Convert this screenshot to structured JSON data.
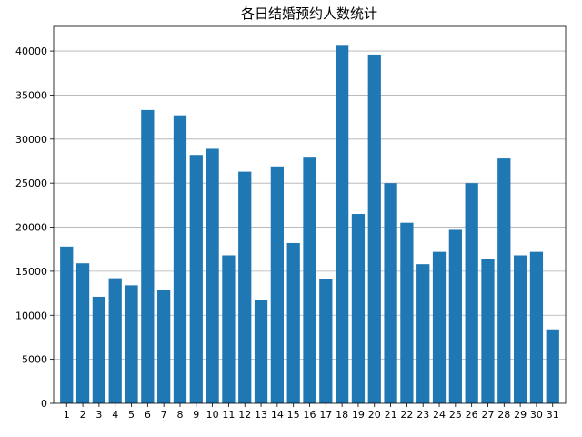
{
  "chart_data": {
    "type": "bar",
    "title": "各日结婚预约人数统计",
    "xlabel": "",
    "ylabel": "",
    "categories": [
      "1",
      "2",
      "3",
      "4",
      "5",
      "6",
      "7",
      "8",
      "9",
      "10",
      "11",
      "12",
      "13",
      "14",
      "15",
      "16",
      "17",
      "18",
      "19",
      "20",
      "21",
      "22",
      "23",
      "24",
      "25",
      "26",
      "27",
      "28",
      "29",
      "30",
      "31"
    ],
    "values": [
      17800,
      15900,
      12100,
      14200,
      13400,
      33300,
      12900,
      32700,
      28200,
      28900,
      16800,
      26300,
      11700,
      26900,
      18200,
      28000,
      14100,
      40700,
      21500,
      39600,
      25000,
      20500,
      15800,
      17200,
      19700,
      25000,
      16400,
      27800,
      16800,
      17200,
      8400
    ],
    "ylim": [
      0,
      42800
    ],
    "yticks": [
      0,
      5000,
      10000,
      15000,
      20000,
      25000,
      30000,
      35000,
      40000
    ],
    "grid": "y-major",
    "bar_color": "#1f77b4",
    "legend": "none"
  }
}
